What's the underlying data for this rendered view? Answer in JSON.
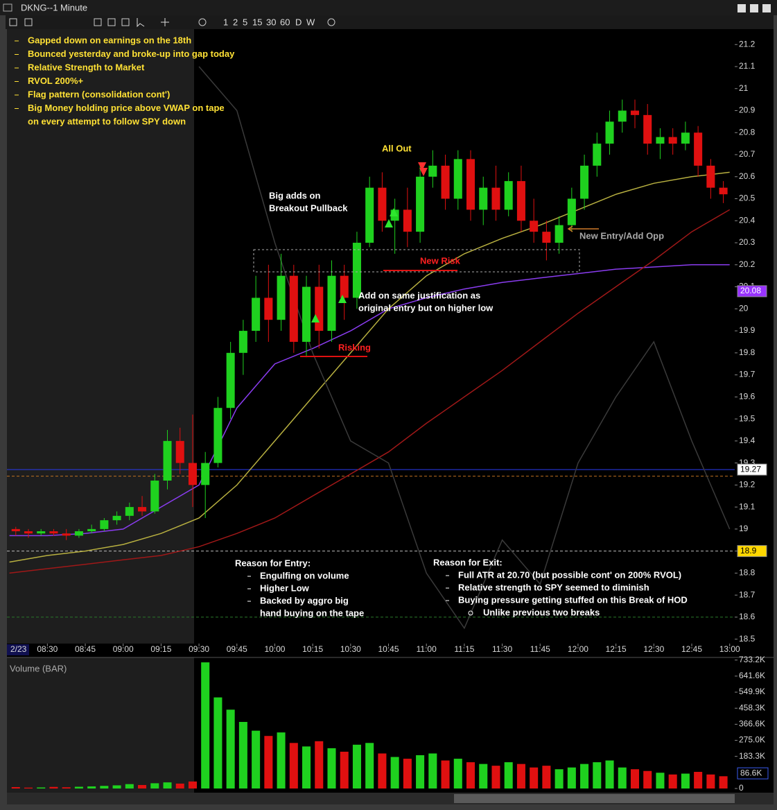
{
  "window": {
    "title": "DKNG--1 Minute",
    "intervals": [
      "1",
      "2",
      "5",
      "15",
      "30",
      "60",
      "D",
      "W"
    ]
  },
  "chart_data": {
    "type": "candlestick",
    "x": [
      "08:15",
      "08:20",
      "08:25",
      "08:30",
      "08:35",
      "08:40",
      "08:45",
      "08:50",
      "08:55",
      "09:00",
      "09:05",
      "09:10",
      "09:15",
      "09:20",
      "09:25",
      "09:30",
      "09:35",
      "09:40",
      "09:45",
      "09:50",
      "09:55",
      "10:00",
      "10:05",
      "10:10",
      "10:15",
      "10:20",
      "10:25",
      "10:30",
      "10:35",
      "10:40",
      "10:45",
      "10:50",
      "10:55",
      "11:00",
      "11:05",
      "11:10",
      "11:15",
      "11:20",
      "11:25",
      "11:30",
      "11:35",
      "11:40",
      "11:45",
      "11:50",
      "11:55",
      "12:00",
      "12:05",
      "12:10",
      "12:15",
      "12:20",
      "12:25",
      "12:30",
      "12:35",
      "12:40",
      "12:45",
      "12:50",
      "12:55"
    ],
    "open": [
      19.0,
      18.99,
      18.98,
      18.99,
      18.98,
      18.97,
      18.99,
      19.0,
      19.04,
      19.06,
      19.1,
      19.08,
      19.22,
      19.4,
      19.3,
      19.2,
      19.3,
      19.55,
      19.8,
      19.9,
      20.05,
      19.95,
      20.15,
      19.85,
      20.1,
      19.9,
      20.15,
      20.05,
      20.3,
      20.55,
      20.4,
      20.45,
      20.35,
      20.6,
      20.65,
      20.5,
      20.68,
      20.45,
      20.55,
      20.45,
      20.58,
      20.4,
      20.35,
      20.3,
      20.38,
      20.5,
      20.65,
      20.75,
      20.85,
      20.9,
      20.88,
      20.75,
      20.78,
      20.75,
      20.8,
      20.65,
      20.55
    ],
    "high": [
      19.01,
      19.0,
      19.0,
      19.0,
      19.0,
      19.0,
      19.02,
      19.05,
      19.08,
      19.12,
      19.15,
      19.25,
      19.45,
      19.46,
      19.52,
      19.35,
      19.6,
      19.85,
      19.95,
      20.15,
      20.2,
      20.25,
      20.2,
      20.15,
      20.2,
      20.22,
      20.2,
      20.35,
      20.6,
      20.62,
      20.5,
      20.55,
      20.65,
      20.72,
      20.7,
      20.72,
      20.72,
      20.6,
      20.65,
      20.62,
      20.65,
      20.5,
      20.4,
      20.42,
      20.55,
      20.7,
      20.8,
      20.9,
      20.95,
      20.95,
      20.93,
      20.82,
      20.82,
      20.85,
      20.83,
      20.68,
      20.58
    ],
    "low": [
      18.97,
      18.96,
      18.97,
      18.97,
      18.95,
      18.96,
      18.98,
      18.99,
      19.02,
      19.04,
      19.06,
      19.07,
      19.18,
      19.25,
      19.1,
      19.05,
      19.28,
      19.5,
      19.7,
      19.85,
      19.85,
      19.9,
      19.8,
      19.78,
      19.82,
      19.85,
      19.95,
      20.0,
      20.28,
      20.35,
      20.25,
      20.28,
      20.3,
      20.55,
      20.45,
      20.45,
      20.4,
      20.38,
      20.4,
      20.42,
      20.35,
      20.3,
      20.22,
      20.25,
      20.35,
      20.45,
      20.6,
      20.7,
      20.8,
      20.82,
      20.7,
      20.68,
      20.7,
      20.72,
      20.6,
      20.5,
      20.48
    ],
    "close": [
      18.99,
      18.98,
      18.99,
      18.98,
      18.97,
      18.99,
      19.0,
      19.04,
      19.06,
      19.1,
      19.08,
      19.22,
      19.4,
      19.3,
      19.2,
      19.3,
      19.55,
      19.8,
      19.9,
      20.05,
      19.95,
      20.15,
      19.85,
      20.1,
      19.9,
      20.15,
      20.05,
      20.3,
      20.55,
      20.4,
      20.45,
      20.35,
      20.6,
      20.65,
      20.5,
      20.68,
      20.45,
      20.55,
      20.45,
      20.58,
      20.4,
      20.35,
      20.3,
      20.38,
      20.5,
      20.65,
      20.75,
      20.85,
      20.9,
      20.88,
      20.75,
      20.78,
      20.75,
      20.8,
      20.65,
      20.55,
      20.52
    ],
    "volume": [
      8000,
      5000,
      6000,
      9000,
      7000,
      10000,
      12000,
      15000,
      18000,
      25000,
      20000,
      30000,
      35000,
      28000,
      40000,
      720000,
      520000,
      450000,
      380000,
      330000,
      300000,
      320000,
      260000,
      240000,
      270000,
      230000,
      210000,
      250000,
      260000,
      200000,
      180000,
      170000,
      190000,
      200000,
      160000,
      170000,
      150000,
      140000,
      130000,
      150000,
      140000,
      120000,
      130000,
      110000,
      120000,
      140000,
      150000,
      160000,
      120000,
      110000,
      100000,
      90000,
      80000,
      85000,
      95000,
      80000,
      70000
    ],
    "up_color": "#1fd11f",
    "down_color": "#e01010",
    "xlim": [
      "08:14",
      "13:02"
    ],
    "xticks": [
      "08:30",
      "08:45",
      "09:00",
      "09:15",
      "09:30",
      "09:45",
      "10:00",
      "10:15",
      "10:30",
      "10:45",
      "11:00",
      "11:15",
      "11:30",
      "11:45",
      "12:00",
      "12:15",
      "12:30",
      "12:45",
      "13:00"
    ],
    "date_label": "2/23",
    "ylim": [
      18.48,
      21.27
    ],
    "yticks": [
      21.2,
      21.1,
      21,
      20.9,
      20.8,
      20.7,
      20.6,
      20.5,
      20.4,
      20.3,
      20.2,
      20.1,
      20,
      19.9,
      19.8,
      19.7,
      19.6,
      19.5,
      19.4,
      19.3,
      19.2,
      19.1,
      19,
      18.9,
      18.8,
      18.7,
      18.6,
      18.5
    ],
    "overlay_x": [
      "08:15",
      "08:30",
      "08:45",
      "09:00",
      "09:15",
      "09:30",
      "09:45",
      "10:00",
      "10:15",
      "10:30",
      "10:45",
      "11:00",
      "11:15",
      "11:30",
      "11:45",
      "12:00",
      "12:15",
      "12:30",
      "12:45",
      "13:00"
    ],
    "overlays": [
      {
        "color": "#8a3cf0",
        "values": [
          18.97,
          18.97,
          18.98,
          19.0,
          19.1,
          19.2,
          19.55,
          19.75,
          19.82,
          19.9,
          20.0,
          20.05,
          20.09,
          20.12,
          20.14,
          20.16,
          20.18,
          20.19,
          20.2,
          20.2
        ]
      },
      {
        "color": "#b8b040",
        "values": [
          18.85,
          18.88,
          18.9,
          18.93,
          18.98,
          19.05,
          19.2,
          19.4,
          19.6,
          19.8,
          20.0,
          20.15,
          20.25,
          20.32,
          20.38,
          20.45,
          20.52,
          20.57,
          20.6,
          20.62
        ]
      },
      {
        "color": "#a01818",
        "values": [
          18.8,
          18.82,
          18.84,
          18.86,
          18.88,
          18.92,
          18.98,
          19.05,
          19.15,
          19.25,
          19.35,
          19.48,
          19.6,
          19.72,
          19.85,
          19.98,
          20.1,
          20.22,
          20.35,
          20.45
        ]
      },
      {
        "color": "#3a3a3a",
        "values": [
          null,
          null,
          null,
          null,
          null,
          21.1,
          20.9,
          20.3,
          19.8,
          19.4,
          19.3,
          18.8,
          18.55,
          18.95,
          18.75,
          19.3,
          19.6,
          19.85,
          19.4,
          19.0
        ]
      }
    ],
    "levels": [
      {
        "value": 19.27,
        "color": "#2a3cf0",
        "dash": false
      },
      {
        "value": 19.24,
        "color": "#c07020",
        "dash": true
      },
      {
        "value": 18.9,
        "color": "#bbbbbb",
        "dash": true
      },
      {
        "value": 18.6,
        "color": "#2a7a2a",
        "dash": true
      }
    ],
    "price_markers": [
      {
        "value": 20.08,
        "color": "#9933ff"
      },
      {
        "value": 19.27,
        "color": "#ffffff"
      },
      {
        "value": 18.9,
        "color": "#ffd700"
      }
    ],
    "volume_title": "Volume (BAR)",
    "volume_ylim": [
      0,
      760000
    ],
    "volume_yticks": [
      {
        "value": 733200,
        "label": "733.2K"
      },
      {
        "value": 641600,
        "label": "641.6K"
      },
      {
        "value": 549900,
        "label": "549.9K"
      },
      {
        "value": 458300,
        "label": "458.3K"
      },
      {
        "value": 366600,
        "label": "366.6K"
      },
      {
        "value": 275000,
        "label": "275.0K"
      },
      {
        "value": 183300,
        "label": "183.3K"
      },
      0
    ],
    "volume_marker": {
      "value": 86600,
      "label": "86.6K"
    }
  },
  "notes": [
    "Gapped down on earnings on the 18th",
    "Bounced yesterday and broke-up into gap today",
    "Relative Strength to Market",
    "RVOL 200%+",
    "Flag pattern (consolidation cont')",
    "Big Money holding price above VWAP on tape",
    "on every attempt to follow SPY down"
  ],
  "annotations": {
    "all_out": "All Out",
    "big_adds": [
      "Big adds on",
      "Breakout Pullback"
    ],
    "add_on": [
      "Add on same justification as",
      "original entry but on higher low"
    ],
    "new_risk": "New Risk",
    "risking": "Risking",
    "new_entry": "New Entry/Add Opp"
  },
  "entry_reasons": {
    "title": "Reason for Entry:",
    "items": [
      "Engulfing on volume",
      "Higher Low",
      "Backed by aggro big",
      "hand buying on the tape"
    ]
  },
  "exit_reasons": {
    "title": "Reason for Exit:",
    "items": [
      "Full ATR at 20.70 (but possible cont' on 200% RVOL)",
      "Relative strength to SPY seemed to diminish",
      "Buying pressure getting stuffed on this Break of HOD"
    ],
    "sub_items": [
      "Unlike previous two breaks"
    ]
  }
}
